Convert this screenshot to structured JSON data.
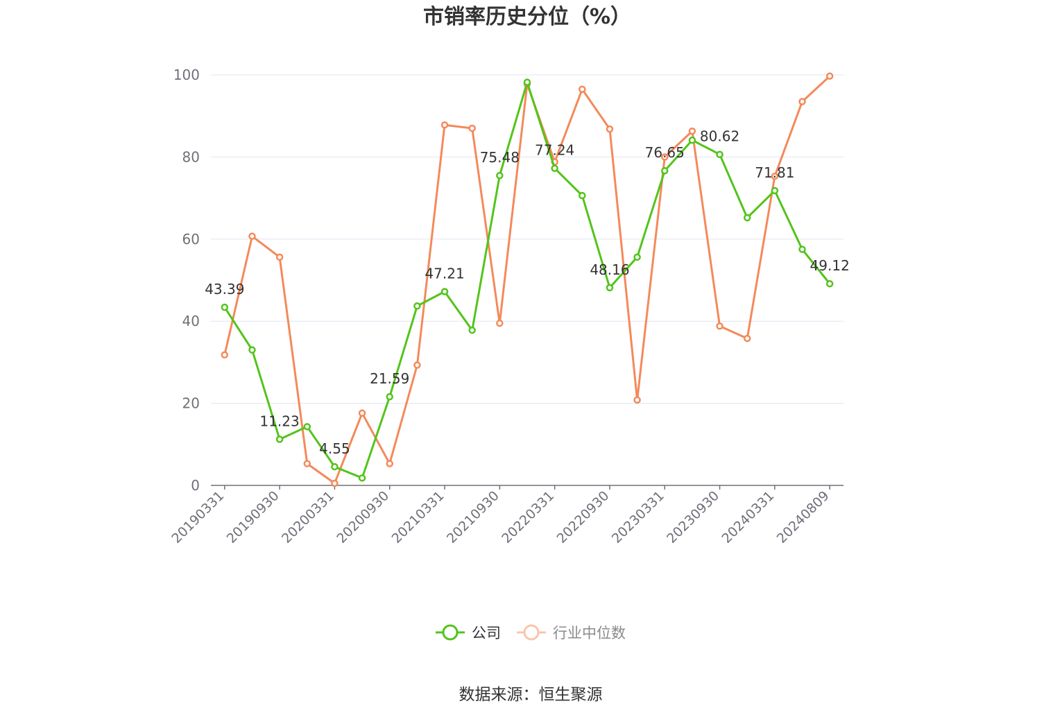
{
  "chart_data": {
    "type": "line",
    "title": "市销率历史分位（%）",
    "source": "数据来源：恒生聚源",
    "ylim": [
      0,
      100
    ],
    "yticks": [
      0,
      20,
      40,
      60,
      80,
      100
    ],
    "xtick_labels": [
      "20190331",
      "20190930",
      "20200331",
      "20200930",
      "20210331",
      "20210930",
      "20220331",
      "20220930",
      "20230331",
      "20230930",
      "20240331",
      "20240809"
    ],
    "x": [
      "20190331",
      "20190630",
      "20190930",
      "20191231",
      "20200331",
      "20200630",
      "20200930",
      "20201231",
      "20210331",
      "20210630",
      "20210930",
      "20211231",
      "20220331",
      "20220630",
      "20220930",
      "20221231",
      "20230331",
      "20230630",
      "20230930",
      "20231231",
      "20240331",
      "20240630",
      "20240809"
    ],
    "series": [
      {
        "name": "公司",
        "color": "#52c41a",
        "values": [
          43.39,
          33.0,
          11.23,
          14.3,
          4.55,
          1.8,
          21.59,
          43.7,
          47.21,
          37.8,
          75.48,
          98.2,
          77.24,
          70.6,
          48.16,
          55.6,
          76.65,
          84.1,
          80.62,
          65.2,
          71.81,
          57.5,
          49.12
        ],
        "labels": [
          "43.39",
          "",
          "11.23",
          "",
          "4.55",
          "",
          "21.59",
          "",
          "47.21",
          "",
          "75.48",
          "",
          "77.24",
          "",
          "48.16",
          "",
          "76.65",
          "",
          "80.62",
          "",
          "71.81",
          "",
          "49.12"
        ]
      },
      {
        "name": "行业中位数",
        "color": "#f4895a",
        "values": [
          31.8,
          60.7,
          55.6,
          5.3,
          0.5,
          17.6,
          5.3,
          29.3,
          87.8,
          87.0,
          39.5,
          97.8,
          78.8,
          96.5,
          86.8,
          20.8,
          80.0,
          86.3,
          38.8,
          35.8,
          75.3,
          93.5,
          99.7
        ]
      }
    ],
    "legend": {
      "position": "bottom-center",
      "items": [
        "公司",
        "行业中位数"
      ]
    },
    "grid": true
  }
}
